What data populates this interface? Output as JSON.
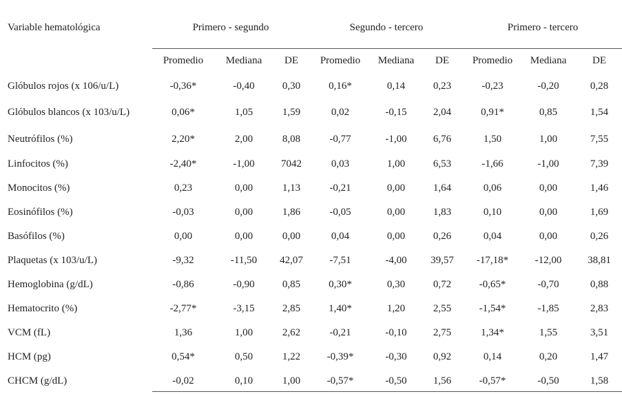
{
  "table": {
    "var_header": "Variable hematológica",
    "groups": [
      "Primero - segundo",
      "Segundo - tercero",
      "Primero - tercero"
    ],
    "subheaders": [
      "Promedio",
      "Mediana",
      "DE",
      "Promedio",
      "Mediana",
      "DE",
      "Promedio",
      "Mediana",
      "DE"
    ],
    "rows": [
      {
        "label": "Glóbulos rojos (x 106/u/L)",
        "values": [
          "-0,36*",
          "-0,40",
          "0,30",
          "0,16*",
          "0,14",
          "0,23",
          "-0,23",
          "-0,20",
          "0,28"
        ]
      },
      {
        "label": "Glóbulos blancos (x 103/u/L)",
        "values": [
          "0,06*",
          "1,05",
          "1,59",
          "0,02",
          "-0,15",
          "2,04",
          "0,91*",
          "0,85",
          "1,54"
        ]
      },
      {
        "label": "Neutrófilos (%)",
        "values": [
          "2,20*",
          "2,00",
          "8,08",
          "-0,77",
          "-1,00",
          "6,76",
          "1,50",
          "1,00",
          "7,55"
        ]
      },
      {
        "label": "Linfocitos (%)",
        "values": [
          "-2,40*",
          "-1,00",
          "7042",
          "0,03",
          "1,00",
          "6,53",
          "-1,66",
          "-1,00",
          "7,39"
        ]
      },
      {
        "label": "Monocitos (%)",
        "values": [
          "0,23",
          "0,00",
          "1,13",
          "-0,21",
          "0,00",
          "1,64",
          "0,06",
          "0,00",
          "1,46"
        ]
      },
      {
        "label": "Eosinófilos (%)",
        "values": [
          "-0,03",
          "0,00",
          "1,86",
          "-0,05",
          "0,00",
          "1,83",
          "0,10",
          "0,00",
          "1,69"
        ]
      },
      {
        "label": "Basófilos (%)",
        "values": [
          "0,00",
          "0,00",
          "0,00",
          "0,04",
          "0,00",
          "0,26",
          "0,04",
          "0,00",
          "0,26"
        ]
      },
      {
        "label": "Plaquetas (x 103/u/L)",
        "values": [
          "-9,32",
          "-11,50",
          "42,07",
          "-7,51",
          "-4,00",
          "39,57",
          "-17,18*",
          "-12,00",
          "38,81"
        ]
      },
      {
        "label": "Hemoglobina (g/dL)",
        "values": [
          "-0,86",
          "-0,90",
          "0,85",
          "0,30*",
          "0,30",
          "0,72",
          "-0,65*",
          "-0,70",
          "0,88"
        ]
      },
      {
        "label": "Hematocrito (%)",
        "values": [
          "-2,77*",
          "-3,15",
          "2,85",
          "1,40*",
          "1,20",
          "2,55",
          "-1,54*",
          "-1,85",
          "2,83"
        ]
      },
      {
        "label": "VCM (fL)",
        "values": [
          "1,36",
          "1,00",
          "2,62",
          "-0,21",
          "-0,10",
          "2,75",
          "1,34*",
          "1,55",
          "3,51"
        ]
      },
      {
        "label": "HCM (pg)",
        "values": [
          "0,54*",
          "0,50",
          "1,22",
          "-0,39*",
          "-0,30",
          "0,92",
          "0,14",
          "0,20",
          "1,47"
        ]
      },
      {
        "label": "CHCM (g/dL)",
        "values": [
          "-0,02",
          "0,10",
          "1,00",
          "-0,57*",
          "-0,50",
          "1,56",
          "-0,57*",
          "-0,50",
          "1,58"
        ]
      }
    ]
  }
}
